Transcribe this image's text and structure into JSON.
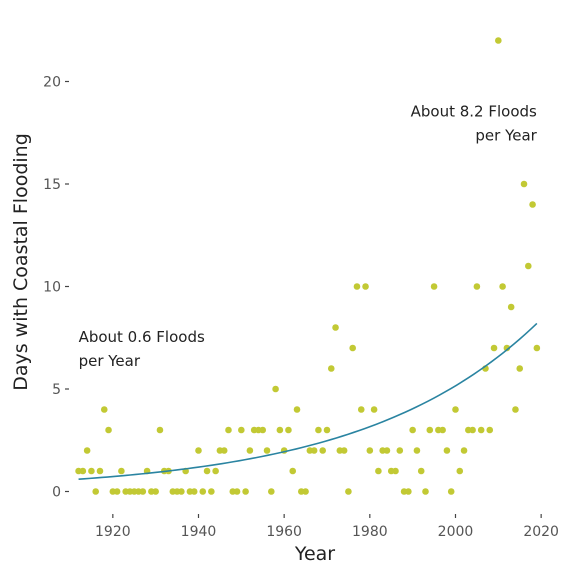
{
  "chart_data": {
    "type": "scatter",
    "xlabel": "Year",
    "ylabel": "Days with Coastal Flooding",
    "xlim": [
      1910,
      2023
    ],
    "ylim": [
      -1,
      23
    ],
    "xticks": [
      1920,
      1940,
      1960,
      1980,
      2000,
      2020
    ],
    "yticks": [
      0,
      5,
      10,
      15,
      20
    ],
    "grid": false,
    "point_color": "#c2c934",
    "line_color": "#2a84a1",
    "points": [
      [
        1912,
        1
      ],
      [
        1913,
        1
      ],
      [
        1914,
        2
      ],
      [
        1915,
        1
      ],
      [
        1916,
        0
      ],
      [
        1917,
        1
      ],
      [
        1918,
        4
      ],
      [
        1919,
        3
      ],
      [
        1920,
        0
      ],
      [
        1921,
        0
      ],
      [
        1922,
        1
      ],
      [
        1923,
        0
      ],
      [
        1924,
        0
      ],
      [
        1925,
        0
      ],
      [
        1926,
        0
      ],
      [
        1927,
        0
      ],
      [
        1928,
        1
      ],
      [
        1929,
        0
      ],
      [
        1930,
        0
      ],
      [
        1931,
        3
      ],
      [
        1932,
        1
      ],
      [
        1933,
        1
      ],
      [
        1934,
        0
      ],
      [
        1935,
        0
      ],
      [
        1936,
        0
      ],
      [
        1937,
        1
      ],
      [
        1938,
        0
      ],
      [
        1939,
        0
      ],
      [
        1940,
        2
      ],
      [
        1941,
        0
      ],
      [
        1942,
        1
      ],
      [
        1943,
        0
      ],
      [
        1944,
        1
      ],
      [
        1945,
        2
      ],
      [
        1946,
        2
      ],
      [
        1947,
        3
      ],
      [
        1948,
        0
      ],
      [
        1949,
        0
      ],
      [
        1950,
        3
      ],
      [
        1951,
        0
      ],
      [
        1952,
        2
      ],
      [
        1953,
        3
      ],
      [
        1954,
        3
      ],
      [
        1955,
        3
      ],
      [
        1956,
        2
      ],
      [
        1957,
        0
      ],
      [
        1958,
        5
      ],
      [
        1959,
        3
      ],
      [
        1960,
        2
      ],
      [
        1961,
        3
      ],
      [
        1962,
        1
      ],
      [
        1963,
        4
      ],
      [
        1964,
        0
      ],
      [
        1965,
        0
      ],
      [
        1966,
        2
      ],
      [
        1967,
        2
      ],
      [
        1968,
        3
      ],
      [
        1969,
        2
      ],
      [
        1970,
        3
      ],
      [
        1971,
        6
      ],
      [
        1972,
        8
      ],
      [
        1973,
        2
      ],
      [
        1974,
        2
      ],
      [
        1975,
        0
      ],
      [
        1976,
        7
      ],
      [
        1977,
        10
      ],
      [
        1978,
        4
      ],
      [
        1979,
        10
      ],
      [
        1980,
        2
      ],
      [
        1981,
        4
      ],
      [
        1982,
        1
      ],
      [
        1983,
        2
      ],
      [
        1984,
        2
      ],
      [
        1985,
        1
      ],
      [
        1986,
        1
      ],
      [
        1987,
        2
      ],
      [
        1988,
        0
      ],
      [
        1989,
        0
      ],
      [
        1990,
        3
      ],
      [
        1991,
        2
      ],
      [
        1992,
        1
      ],
      [
        1993,
        0
      ],
      [
        1994,
        3
      ],
      [
        1995,
        10
      ],
      [
        1996,
        3
      ],
      [
        1997,
        3
      ],
      [
        1998,
        2
      ],
      [
        1999,
        0
      ],
      [
        2000,
        4
      ],
      [
        2001,
        1
      ],
      [
        2002,
        2
      ],
      [
        2003,
        3
      ],
      [
        2004,
        3
      ],
      [
        2005,
        10
      ],
      [
        2006,
        3
      ],
      [
        2007,
        6
      ],
      [
        2008,
        3
      ],
      [
        2009,
        7
      ],
      [
        2010,
        22
      ],
      [
        2011,
        10
      ],
      [
        2012,
        7
      ],
      [
        2013,
        9
      ],
      [
        2014,
        4
      ],
      [
        2015,
        6
      ],
      [
        2016,
        15
      ],
      [
        2017,
        11
      ],
      [
        2018,
        14
      ],
      [
        2019,
        7
      ]
    ],
    "trend": {
      "type": "exponential",
      "x": [
        1912,
        2019
      ],
      "y": [
        0.6,
        8.2
      ]
    },
    "annotations": [
      {
        "lines": [
          "About 0.6 Floods",
          "per Year"
        ],
        "x": 1912,
        "y": 7.3,
        "align": "start"
      },
      {
        "lines": [
          "About 8.2 Floods",
          "per Year"
        ],
        "x": 2019,
        "y": 18.3,
        "align": "end"
      }
    ]
  }
}
